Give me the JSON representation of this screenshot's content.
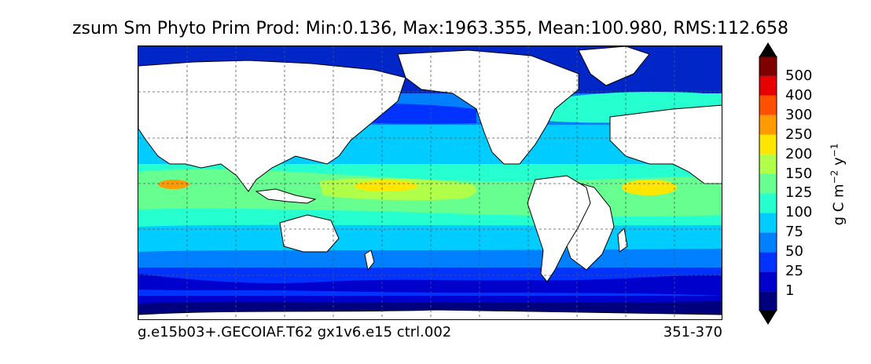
{
  "title": "zsum Sm Phyto Prim Prod: Min:0.136, Max:1963.355, Mean:100.980, RMS:112.658",
  "footer": {
    "run": "g.e15b03+.GECOIAF.T62 gx1v6.e15 ctrl.002",
    "period": "351-370"
  },
  "colorbar": {
    "unit_prefix": "g C m",
    "unit_exp1": "−2",
    "unit_mid": " y",
    "unit_exp2": "−1",
    "tick_labels": [
      "1",
      "25",
      "50",
      "75",
      "100",
      "125",
      "150",
      "200",
      "250",
      "300",
      "400",
      "500"
    ],
    "colors": [
      "#00007f",
      "#0000cd",
      "#0033ff",
      "#0080ff",
      "#00ccff",
      "#26ffd0",
      "#66ff90",
      "#b0ff48",
      "#ffe600",
      "#ff9a00",
      "#ff5000",
      "#e60000",
      "#7f0000"
    ],
    "extend": "both"
  },
  "map": {
    "projection": "plate-carree",
    "gridlines": "dashed",
    "land_color": "#ffffff",
    "coastline_color": "#000000"
  }
}
